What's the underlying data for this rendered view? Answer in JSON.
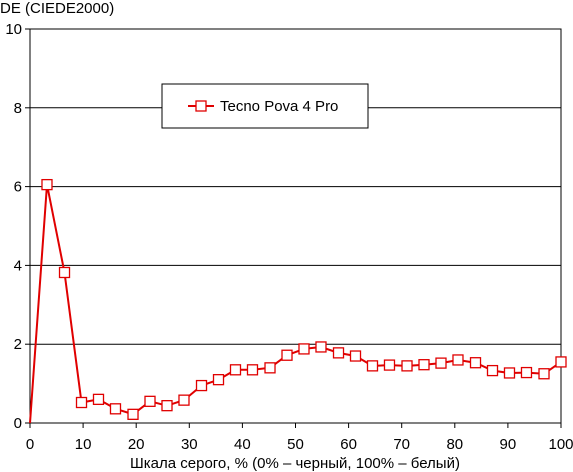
{
  "chart_data": {
    "type": "line",
    "xlabel": "Шкала серого, % (0% – черный, 100% – белый)",
    "ylabel": "DE (CIEDE2000)",
    "xlim": [
      0,
      100
    ],
    "ylim": [
      0,
      10
    ],
    "xticks": [
      0,
      10,
      20,
      30,
      40,
      50,
      60,
      70,
      80,
      90,
      100
    ],
    "yticks": [
      0,
      2,
      4,
      6,
      8,
      10
    ],
    "grid": "horizontal",
    "legend_position": "top-center",
    "series": [
      {
        "name": "Tecno Pova 4 Pro",
        "color": "#e00000",
        "marker": "square-open",
        "x": [
          0,
          3.2,
          6.5,
          9.7,
          12.9,
          16.1,
          19.4,
          22.6,
          25.8,
          29.0,
          32.3,
          35.5,
          38.7,
          41.9,
          45.2,
          48.4,
          51.6,
          54.8,
          58.1,
          61.3,
          64.5,
          67.7,
          71.0,
          74.2,
          77.4,
          80.6,
          83.9,
          87.1,
          90.3,
          93.5,
          96.8,
          100
        ],
        "y": [
          0,
          6.05,
          3.82,
          0.52,
          0.6,
          0.36,
          0.22,
          0.55,
          0.44,
          0.58,
          0.95,
          1.1,
          1.35,
          1.35,
          1.4,
          1.72,
          1.88,
          1.93,
          1.78,
          1.7,
          1.45,
          1.47,
          1.45,
          1.48,
          1.52,
          1.6,
          1.53,
          1.33,
          1.27,
          1.28,
          1.25,
          1.55
        ]
      }
    ]
  }
}
